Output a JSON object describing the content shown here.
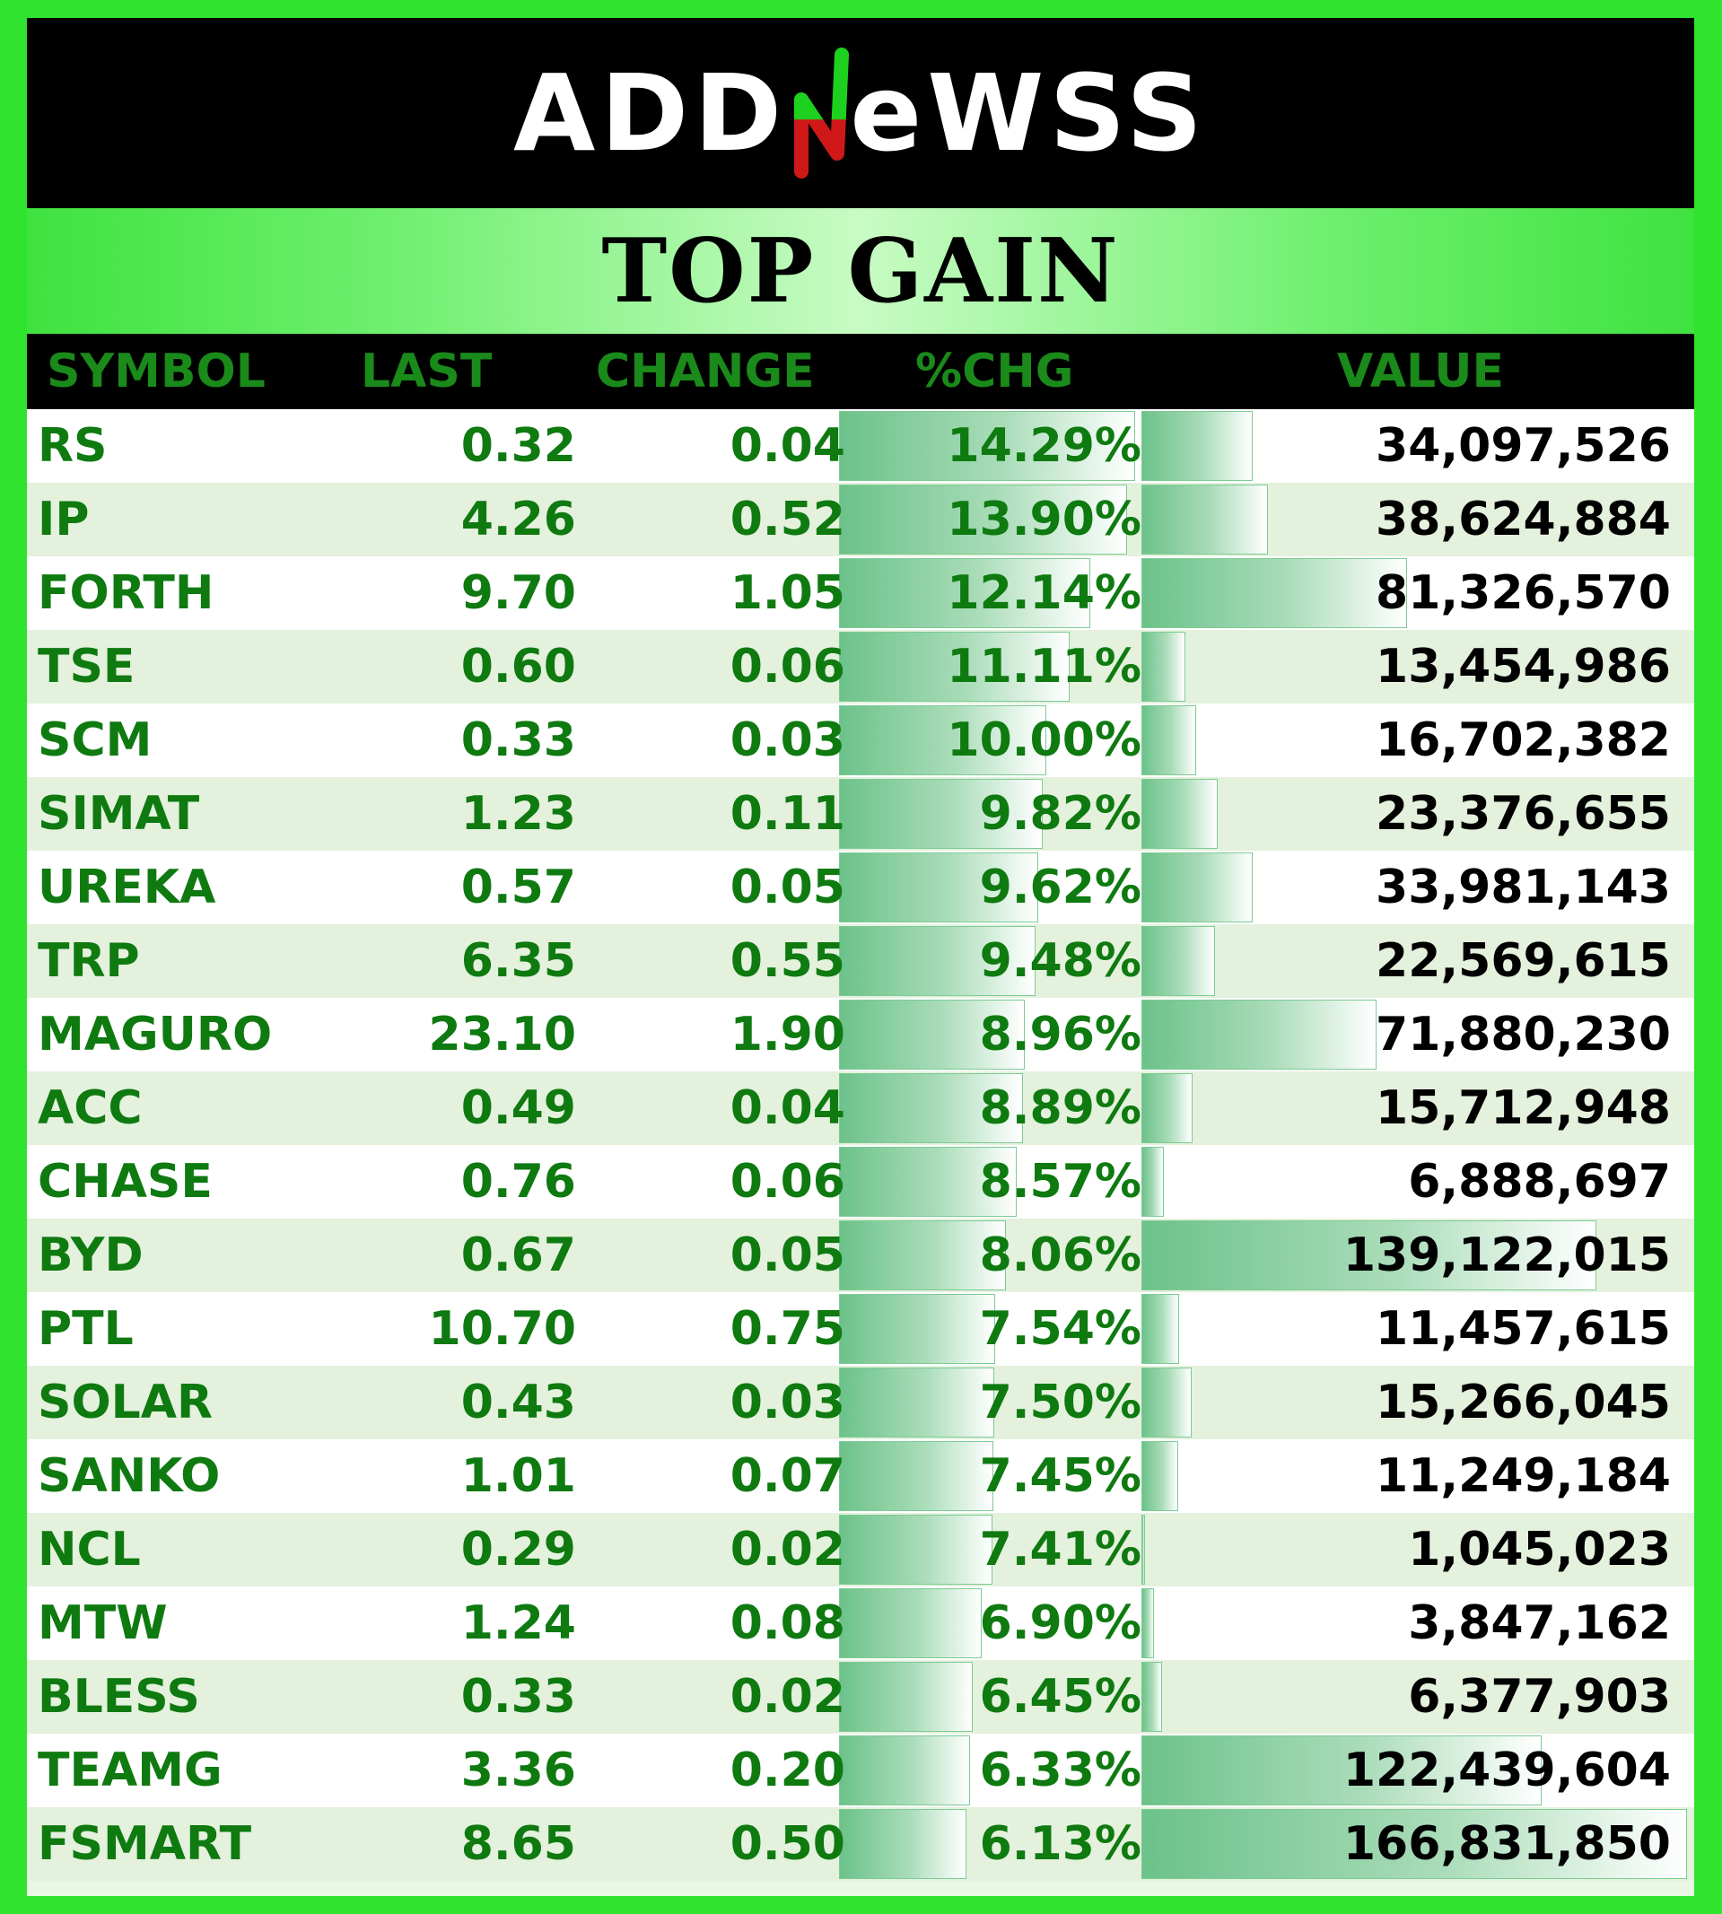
{
  "brand": {
    "logo_text": "ADDNeWSS"
  },
  "title": "TOP GAIN",
  "colors": {
    "frame": "#2fe32f",
    "text_green": "#0e7a10",
    "bar": "#6cc28a"
  },
  "columns": [
    "SYMBOL",
    "LAST",
    "CHANGE",
    "%CHG",
    "VALUE"
  ],
  "max_pct": 14.29,
  "max_value": 166831850,
  "rows": [
    {
      "symbol": "RS",
      "last": "0.32",
      "change": "0.04",
      "pct": "14.29%",
      "value": "34,097,526"
    },
    {
      "symbol": "IP",
      "last": "4.26",
      "change": "0.52",
      "pct": "13.90%",
      "value": "38,624,884"
    },
    {
      "symbol": "FORTH",
      "last": "9.70",
      "change": "1.05",
      "pct": "12.14%",
      "value": "81,326,570"
    },
    {
      "symbol": "TSE",
      "last": "0.60",
      "change": "0.06",
      "pct": "11.11%",
      "value": "13,454,986"
    },
    {
      "symbol": "SCM",
      "last": "0.33",
      "change": "0.03",
      "pct": "10.00%",
      "value": "16,702,382"
    },
    {
      "symbol": "SIMAT",
      "last": "1.23",
      "change": "0.11",
      "pct": "9.82%",
      "value": "23,376,655"
    },
    {
      "symbol": "UREKA",
      "last": "0.57",
      "change": "0.05",
      "pct": "9.62%",
      "value": "33,981,143"
    },
    {
      "symbol": "TRP",
      "last": "6.35",
      "change": "0.55",
      "pct": "9.48%",
      "value": "22,569,615"
    },
    {
      "symbol": "MAGURO",
      "last": "23.10",
      "change": "1.90",
      "pct": "8.96%",
      "value": "71,880,230"
    },
    {
      "symbol": "ACC",
      "last": "0.49",
      "change": "0.04",
      "pct": "8.89%",
      "value": "15,712,948"
    },
    {
      "symbol": "CHASE",
      "last": "0.76",
      "change": "0.06",
      "pct": "8.57%",
      "value": "6,888,697"
    },
    {
      "symbol": "BYD",
      "last": "0.67",
      "change": "0.05",
      "pct": "8.06%",
      "value": "139,122,015"
    },
    {
      "symbol": "PTL",
      "last": "10.70",
      "change": "0.75",
      "pct": "7.54%",
      "value": "11,457,615"
    },
    {
      "symbol": "SOLAR",
      "last": "0.43",
      "change": "0.03",
      "pct": "7.50%",
      "value": "15,266,045"
    },
    {
      "symbol": "SANKO",
      "last": "1.01",
      "change": "0.07",
      "pct": "7.45%",
      "value": "11,249,184"
    },
    {
      "symbol": "NCL",
      "last": "0.29",
      "change": "0.02",
      "pct": "7.41%",
      "value": "1,045,023"
    },
    {
      "symbol": "MTW",
      "last": "1.24",
      "change": "0.08",
      "pct": "6.90%",
      "value": "3,847,162"
    },
    {
      "symbol": "BLESS",
      "last": "0.33",
      "change": "0.02",
      "pct": "6.45%",
      "value": "6,377,903"
    },
    {
      "symbol": "TEAMG",
      "last": "3.36",
      "change": "0.20",
      "pct": "6.33%",
      "value": "122,439,604"
    },
    {
      "symbol": "FSMART",
      "last": "8.65",
      "change": "0.50",
      "pct": "6.13%",
      "value": "166,831,850"
    }
  ]
}
